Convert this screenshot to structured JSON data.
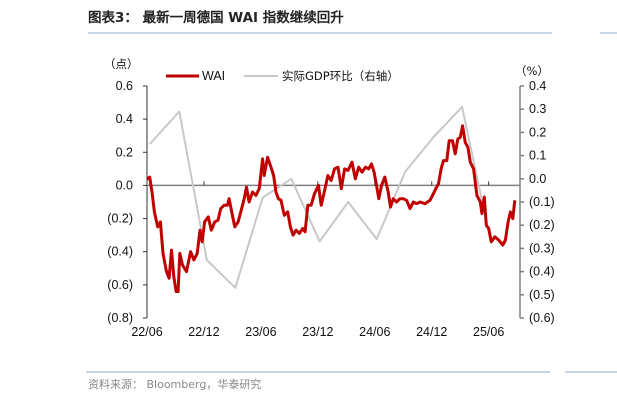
{
  "title": "图表3：  最新一周德国 WAI 指数继续回升",
  "source": "资料来源：  Bloomberg，华泰研究",
  "colors": {
    "wai": "#C00000",
    "gdp": "#C8C8C8",
    "axis": "#808080",
    "rule": "#A9BCD6"
  },
  "chart_data": {
    "type": "line",
    "title": "最新一周德国 WAI 指数继续回升",
    "left_axis": {
      "unit_label": "（点）",
      "ylim": [
        -0.8,
        0.6
      ],
      "ticks": [
        "0.6",
        "0.4",
        "0.2",
        "0.0",
        "(0.2)",
        "(0.4)",
        "(0.6)",
        "(0.8)"
      ],
      "tick_values": [
        0.6,
        0.4,
        0.2,
        0.0,
        -0.2,
        -0.4,
        -0.6,
        -0.8
      ]
    },
    "right_axis": {
      "unit_label": "（%）",
      "ylim": [
        -0.6,
        0.4
      ],
      "ticks": [
        "0.4",
        "0.3",
        "0.2",
        "0.1",
        "0.0",
        "(0.1)",
        "(0.2)",
        "(0.3)",
        "(0.4)",
        "(0.5)",
        "(0.6)"
      ],
      "tick_values": [
        0.4,
        0.3,
        0.2,
        0.1,
        0.0,
        -0.1,
        -0.2,
        -0.3,
        -0.4,
        -0.5,
        -0.6
      ]
    },
    "x_axis": {
      "unit": "months since 2022/06",
      "xlim": [
        0,
        39.3
      ],
      "ticks": [
        "22/06",
        "22/12",
        "23/06",
        "23/12",
        "24/06",
        "24/12",
        "25/06"
      ],
      "tick_values": [
        0,
        6,
        12,
        18,
        24,
        30,
        36
      ]
    },
    "legend": {
      "position": "top",
      "entries": [
        "WAI",
        "实际GDP环比（右轴）"
      ]
    },
    "series": [
      {
        "name": "WAI",
        "axis": "left",
        "points": [
          [
            0,
            0.04
          ],
          [
            0.28,
            0.05
          ],
          [
            0.53,
            -0.04
          ],
          [
            0.78,
            -0.16
          ],
          [
            1.13,
            -0.25
          ],
          [
            1.41,
            -0.22
          ],
          [
            1.69,
            -0.41
          ],
          [
            2.05,
            -0.52
          ],
          [
            2.33,
            -0.56
          ],
          [
            2.58,
            -0.39
          ],
          [
            2.82,
            -0.55
          ],
          [
            3.07,
            -0.64
          ],
          [
            3.28,
            -0.64
          ],
          [
            3.46,
            -0.41
          ],
          [
            3.74,
            -0.48
          ],
          [
            4.16,
            -0.52
          ],
          [
            4.59,
            -0.4
          ],
          [
            4.94,
            -0.45
          ],
          [
            5.29,
            -0.41
          ],
          [
            5.58,
            -0.27
          ],
          [
            5.82,
            -0.34
          ],
          [
            6.07,
            -0.22
          ],
          [
            6.46,
            -0.19
          ],
          [
            6.78,
            -0.27
          ],
          [
            7.13,
            -0.22
          ],
          [
            7.48,
            -0.21
          ],
          [
            7.76,
            -0.14
          ],
          [
            8.12,
            -0.12
          ],
          [
            8.47,
            -0.12
          ],
          [
            8.65,
            -0.08
          ],
          [
            9.0,
            -0.18
          ],
          [
            9.25,
            -0.25
          ],
          [
            9.6,
            -0.22
          ],
          [
            9.88,
            -0.16
          ],
          [
            10.24,
            -0.08
          ],
          [
            10.48,
            -0.01
          ],
          [
            10.76,
            -0.1
          ],
          [
            11.12,
            -0.04
          ],
          [
            11.47,
            -0.06
          ],
          [
            11.82,
            -0.02
          ],
          [
            12.18,
            0.16
          ],
          [
            12.35,
            0.06
          ],
          [
            12.71,
            0.17
          ],
          [
            13.06,
            0.11
          ],
          [
            13.34,
            0.06
          ],
          [
            13.59,
            -0.04
          ],
          [
            13.84,
            -0.08
          ],
          [
            14.12,
            -0.09
          ],
          [
            14.47,
            -0.18
          ],
          [
            14.82,
            -0.16
          ],
          [
            15.11,
            -0.25
          ],
          [
            15.39,
            -0.3
          ],
          [
            15.71,
            -0.27
          ],
          [
            16.06,
            -0.29
          ],
          [
            16.41,
            -0.26
          ],
          [
            16.66,
            -0.28
          ],
          [
            16.94,
            -0.12
          ],
          [
            17.29,
            -0.12
          ],
          [
            17.65,
            -0.05
          ],
          [
            18.07,
            0.0
          ],
          [
            18.35,
            -0.12
          ],
          [
            18.71,
            -0.03
          ],
          [
            19.06,
            0.06
          ],
          [
            19.41,
            0.03
          ],
          [
            19.76,
            0.1
          ],
          [
            20.12,
            0.11
          ],
          [
            20.47,
            -0.02
          ],
          [
            20.82,
            0.1
          ],
          [
            21.18,
            0.09
          ],
          [
            21.6,
            0.14
          ],
          [
            21.95,
            0.04
          ],
          [
            22.31,
            0.11
          ],
          [
            22.66,
            0.08
          ],
          [
            23.01,
            0.11
          ],
          [
            23.36,
            0.1
          ],
          [
            23.65,
            0.13
          ],
          [
            23.93,
            0.08
          ],
          [
            24.18,
            0.0
          ],
          [
            24.42,
            -0.08
          ],
          [
            24.71,
            0.0
          ],
          [
            25.06,
            0.05
          ],
          [
            25.41,
            -0.04
          ],
          [
            25.66,
            -0.13
          ],
          [
            25.94,
            -0.08
          ],
          [
            26.29,
            -0.1
          ],
          [
            26.65,
            -0.08
          ],
          [
            27.0,
            -0.08
          ],
          [
            27.35,
            -0.09
          ],
          [
            27.71,
            -0.14
          ],
          [
            28.06,
            -0.1
          ],
          [
            28.41,
            -0.11
          ],
          [
            28.76,
            -0.1
          ],
          [
            29.29,
            -0.11
          ],
          [
            29.82,
            -0.09
          ],
          [
            30.18,
            -0.05
          ],
          [
            30.42,
            -0.02
          ],
          [
            30.71,
            0.01
          ],
          [
            30.99,
            0.1
          ],
          [
            31.24,
            0.15
          ],
          [
            31.59,
            0.15
          ],
          [
            31.84,
            0.27
          ],
          [
            32.19,
            0.27
          ],
          [
            32.47,
            0.19
          ],
          [
            32.75,
            0.28
          ],
          [
            33.0,
            0.29
          ],
          [
            33.25,
            0.36
          ],
          [
            33.53,
            0.26
          ],
          [
            33.81,
            0.23
          ],
          [
            34.06,
            0.14
          ],
          [
            34.41,
            0.1
          ],
          [
            34.76,
            -0.06
          ],
          [
            35.12,
            -0.1
          ],
          [
            35.29,
            -0.17
          ],
          [
            35.54,
            -0.07
          ],
          [
            35.75,
            -0.24
          ],
          [
            36.0,
            -0.26
          ],
          [
            36.28,
            -0.34
          ],
          [
            36.64,
            -0.31
          ],
          [
            37.06,
            -0.33
          ],
          [
            37.48,
            -0.36
          ],
          [
            37.76,
            -0.33
          ],
          [
            38.05,
            -0.22
          ],
          [
            38.29,
            -0.16
          ],
          [
            38.54,
            -0.2
          ],
          [
            38.75,
            -0.09
          ]
        ]
      },
      {
        "name": "实际GDP环比（右轴）",
        "axis": "right",
        "points": [
          [
            0.3,
            0.15
          ],
          [
            3.4,
            0.29
          ],
          [
            6.3,
            -0.35
          ],
          [
            9.3,
            -0.47
          ],
          [
            12.2,
            -0.08
          ],
          [
            15.2,
            0.0
          ],
          [
            18.2,
            -0.27
          ],
          [
            21.2,
            -0.1
          ],
          [
            24.2,
            -0.26
          ],
          [
            27.2,
            0.03
          ],
          [
            30.2,
            0.18
          ],
          [
            33.2,
            0.31
          ],
          [
            36.2,
            -0.27
          ]
        ]
      }
    ]
  }
}
